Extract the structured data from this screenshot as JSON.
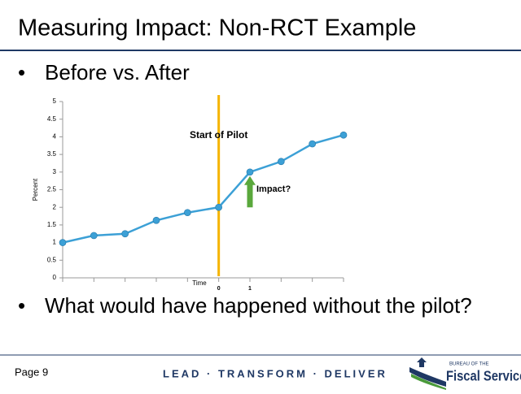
{
  "slide": {
    "title": "Measuring Impact: Non-RCT Example",
    "bullets": [
      "Before vs. After",
      "What would have happened without the pilot?"
    ],
    "page": "Page 9",
    "tagline": "LEAD · TRANSFORM · DELIVER",
    "logo": {
      "top": "BUREAU OF THE",
      "name": "Fiscal Service"
    }
  },
  "chart_data": {
    "type": "line",
    "y_label": "Percent",
    "x_label": "Time",
    "annotations": [
      "Start of Pilot",
      "Impact?"
    ],
    "categories": [
      null,
      null,
      null,
      null,
      null,
      "0",
      "1",
      null,
      null,
      null
    ],
    "values": [
      1,
      1.2,
      1.25,
      1.63,
      1.85,
      2,
      3,
      3.3,
      3.8,
      4.05
    ],
    "color": "#3ca0d6",
    "ylim": [
      0,
      5
    ],
    "yticks": [
      0,
      0.5,
      1,
      1.5,
      2,
      2.5,
      3,
      3.5,
      4,
      4.5,
      5
    ],
    "grid": false
  }
}
